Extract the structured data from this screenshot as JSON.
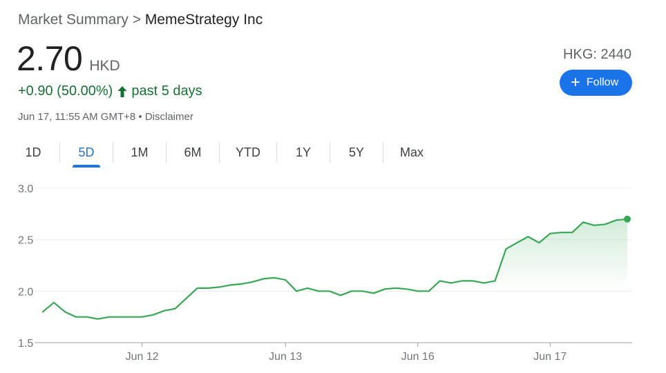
{
  "breadcrumb": {
    "root": "Market Summary",
    "separator": ">",
    "company": "MemeStrategy Inc"
  },
  "quote": {
    "price": "2.70",
    "currency": "HKD",
    "change": "+0.90 (50.00%)",
    "period": "past 5 days",
    "timestamp": "Jun 17, 11:55 AM GMT+8",
    "bullet": "•",
    "disclaimer": "Disclaimer",
    "ticker": "HKG: 2440"
  },
  "follow_button": {
    "icon": "plus-icon",
    "label": "Follow"
  },
  "tabs": [
    "1D",
    "5D",
    "1M",
    "6M",
    "YTD",
    "1Y",
    "5Y",
    "Max"
  ],
  "active_tab": "5D",
  "colors": {
    "up": "#137333",
    "line": "#34a853",
    "accent": "#1a73e8"
  },
  "chart_data": {
    "type": "area",
    "title": "",
    "xlabel": "",
    "ylabel": "",
    "ylim": [
      1.5,
      3.0
    ],
    "yticks": [
      "1.5",
      "2.0",
      "2.5",
      "3.0"
    ],
    "ytick_values": [
      1.5,
      2.0,
      2.5,
      3.0
    ],
    "x_tick_labels": [
      "Jun 12",
      "Jun 13",
      "Jun 16",
      "Jun 17"
    ],
    "x_tick_index": [
      9,
      22,
      34,
      46
    ],
    "grid": true,
    "series": [
      {
        "values": [
          1.8,
          1.89,
          1.8,
          1.75,
          1.75,
          1.73,
          1.75,
          1.75,
          1.75,
          1.75,
          1.77,
          1.81,
          1.83,
          1.93,
          2.03,
          2.03,
          2.04,
          2.06,
          2.07,
          2.09,
          2.12,
          2.13,
          2.11,
          2.0,
          2.03,
          2.0,
          2.0,
          1.96,
          2.0,
          2.0,
          1.98,
          2.02,
          2.03,
          2.02,
          2.0,
          2.0,
          2.1,
          2.08,
          2.1,
          2.1,
          2.08,
          2.1,
          2.41,
          2.47,
          2.53,
          2.47,
          2.56,
          2.57,
          2.57,
          2.67,
          2.64,
          2.65,
          2.69,
          2.7
        ]
      }
    ]
  }
}
